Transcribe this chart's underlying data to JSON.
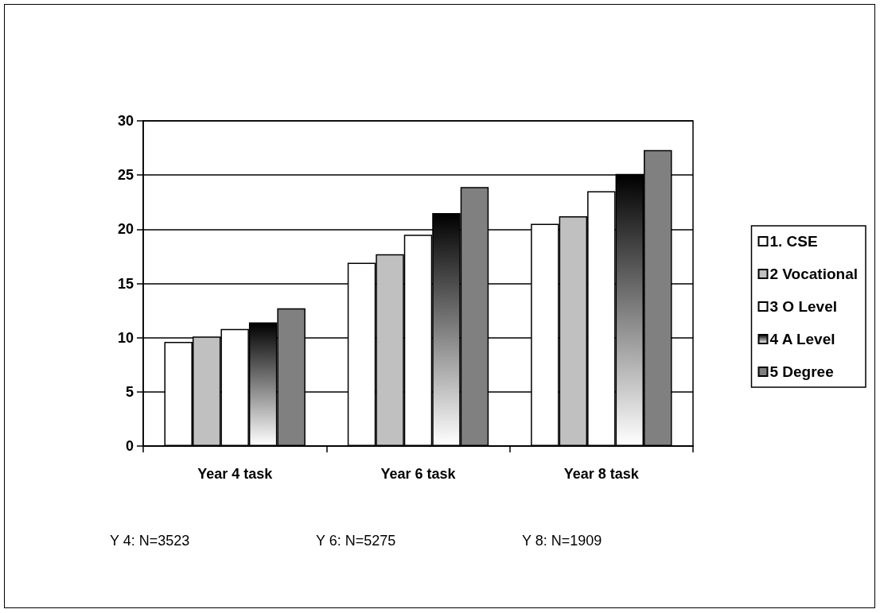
{
  "chart_data": {
    "type": "bar",
    "categories": [
      "Year 4 task",
      "Year 6 task",
      "Year 8 task"
    ],
    "series": [
      {
        "name": "1. CSE",
        "color": "#ffffff",
        "values": [
          9.6,
          16.9,
          20.5
        ]
      },
      {
        "name": "2 Vocational",
        "color": "#c0c0c0",
        "values": [
          10.1,
          17.7,
          21.2
        ]
      },
      {
        "name": "3 O Level",
        "color": "#ffffff",
        "values": [
          10.8,
          19.5,
          23.5
        ]
      },
      {
        "name": "4 A Level",
        "color": "#000000",
        "values": [
          11.4,
          21.5,
          25.1
        ]
      },
      {
        "name": "5 Degree",
        "color": "#808080",
        "values": [
          12.7,
          23.9,
          27.3
        ]
      }
    ],
    "ylim": [
      0,
      30
    ],
    "yticks": [
      0,
      5,
      10,
      15,
      20,
      25,
      30
    ],
    "grid": "y",
    "legend": "right",
    "annotations": [
      "Y 4: N=3523",
      "Y 6: N=5275",
      "Y 8: N=1909"
    ]
  }
}
